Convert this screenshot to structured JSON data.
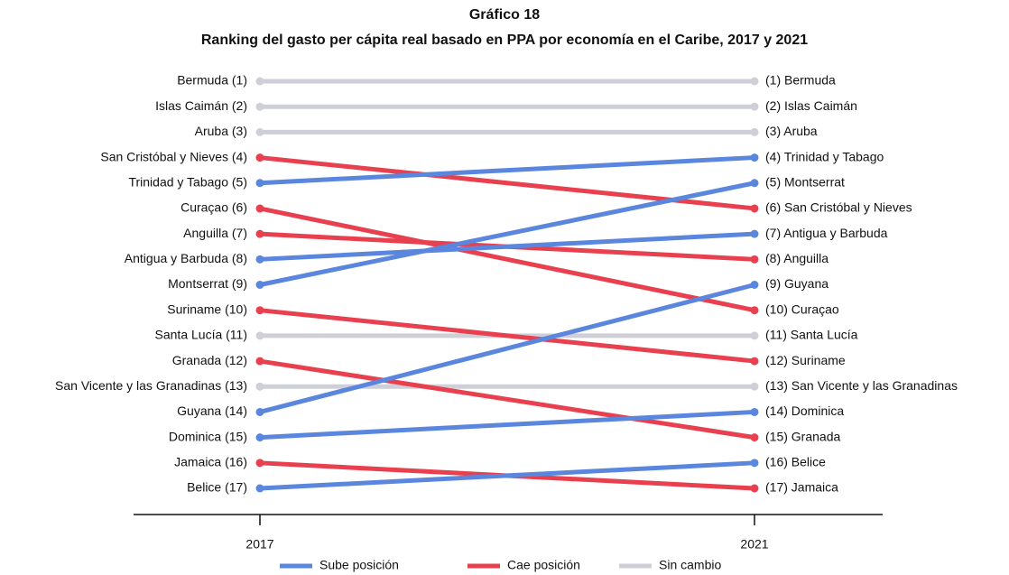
{
  "chart_data": {
    "type": "slope",
    "title": "Gráfico 18",
    "subtitle": "Ranking del gasto per cápita real basado en PPA por economía en el Caribe, 2017 y 2021",
    "categories": [
      "2017",
      "2021"
    ],
    "ylim": [
      1,
      17
    ],
    "y_inverted": true,
    "legend": [
      {
        "label": "Sube posición",
        "color": "#5b86dd"
      },
      {
        "label": "Cae posición",
        "color": "#e8404f"
      },
      {
        "label": "Sin cambio",
        "color": "#cfcfd8"
      }
    ],
    "series": [
      {
        "values": [
          1,
          1
        ],
        "value_labels": [
          "Bermuda (1)",
          "(1) Bermuda"
        ],
        "color": "#cfcfd8"
      },
      {
        "values": [
          2,
          2
        ],
        "value_labels": [
          "Islas Caimán (2)",
          "(2) Islas Caimán"
        ],
        "color": "#cfcfd8"
      },
      {
        "values": [
          3,
          3
        ],
        "value_labels": [
          "Aruba (3)",
          "(3) Aruba"
        ],
        "color": "#cfcfd8"
      },
      {
        "values": [
          11,
          11
        ],
        "value_labels": [
          "Santa Lucía (11)",
          "(11) Santa Lucía"
        ],
        "color": "#cfcfd8"
      },
      {
        "values": [
          13,
          13
        ],
        "value_labels": [
          "San Vicente y las Granadinas  (13)",
          "(13) San Vicente y las Granadinas"
        ],
        "color": "#cfcfd8"
      },
      {
        "values": [
          4,
          6
        ],
        "value_labels": [
          "San Cristóbal y Nieves (4)",
          "(6) San Cristóbal y Nieves"
        ],
        "color": "#e8404f"
      },
      {
        "values": [
          6,
          10
        ],
        "value_labels": [
          "Curaçao (6)",
          "(10) Curaçao"
        ],
        "color": "#e8404f"
      },
      {
        "values": [
          7,
          8
        ],
        "value_labels": [
          "Anguilla (7)",
          "(8) Anguilla"
        ],
        "color": "#e8404f"
      },
      {
        "values": [
          10,
          12
        ],
        "value_labels": [
          "Suriname (10)",
          "(12) Suriname"
        ],
        "color": "#e8404f"
      },
      {
        "values": [
          12,
          15
        ],
        "value_labels": [
          "Granada (12)",
          "(15) Granada"
        ],
        "color": "#e8404f"
      },
      {
        "values": [
          16,
          17
        ],
        "value_labels": [
          "Jamaica (16)",
          "(17) Jamaica"
        ],
        "color": "#e8404f"
      },
      {
        "values": [
          5,
          4
        ],
        "value_labels": [
          "Trinidad y Tabago (5)",
          "(4) Trinidad y Tabago"
        ],
        "color": "#5b86dd"
      },
      {
        "values": [
          8,
          7
        ],
        "value_labels": [
          "Antigua y Barbuda (8)",
          "(7) Antigua y Barbuda"
        ],
        "color": "#5b86dd"
      },
      {
        "values": [
          9,
          5
        ],
        "value_labels": [
          "Montserrat (9)",
          "(5) Montserrat"
        ],
        "color": "#5b86dd"
      },
      {
        "values": [
          14,
          9
        ],
        "value_labels": [
          "Guyana (14)",
          "(9) Guyana"
        ],
        "color": "#5b86dd"
      },
      {
        "values": [
          15,
          14
        ],
        "value_labels": [
          "Dominica (15)",
          "(14) Dominica"
        ],
        "color": "#5b86dd"
      },
      {
        "values": [
          17,
          16
        ],
        "value_labels": [
          "Belice (17)",
          "(16) Belice"
        ],
        "color": "#5b86dd"
      }
    ]
  }
}
